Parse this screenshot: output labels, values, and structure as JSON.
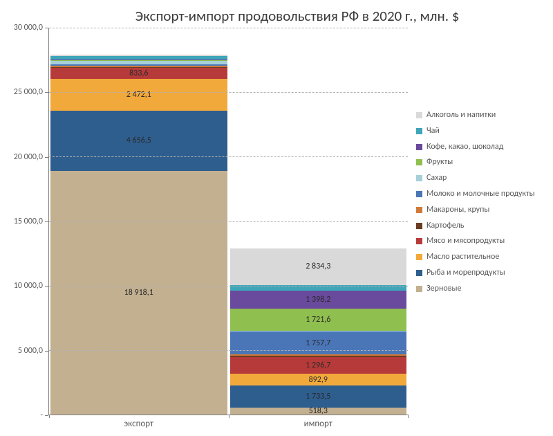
{
  "chart": {
    "type": "stacked-bar",
    "title": "Экспорт-импорт продовольствия РФ в 2020 г., млн. $",
    "title_fontsize": 21,
    "title_color": "#3a3a3a",
    "background_color": "#ffffff",
    "grid_color": "#b0b0b0",
    "axis_color": "#808080",
    "label_color": "#595959",
    "label_fontsize": 12,
    "ylim": [
      0,
      30000
    ],
    "ytick_step": 5000,
    "yticks": [
      {
        "v": 0,
        "label": "-"
      },
      {
        "v": 5000,
        "label": "5 000,0"
      },
      {
        "v": 10000,
        "label": "10 000,0"
      },
      {
        "v": 15000,
        "label": "15 000,0"
      },
      {
        "v": 20000,
        "label": "20 000,0"
      },
      {
        "v": 25000,
        "label": "25 000,0"
      },
      {
        "v": 30000,
        "label": "30 000,0"
      }
    ],
    "categories": [
      "экспорт",
      "импорт"
    ],
    "series": [
      {
        "key": "grain",
        "name": "Зерновые",
        "color": "#c3b091"
      },
      {
        "key": "fish",
        "name": "Рыба и морепродукты",
        "color": "#2e5e8e"
      },
      {
        "key": "oil",
        "name": "Масло растительное",
        "color": "#f2a93b"
      },
      {
        "key": "meat",
        "name": "Мясо и мясопродукты",
        "color": "#b73a3a"
      },
      {
        "key": "potato",
        "name": "Картофель",
        "color": "#6b3c24"
      },
      {
        "key": "pasta",
        "name": "Макароны, крупы",
        "color": "#d07a3a"
      },
      {
        "key": "milk",
        "name": "Молоко и молочные продукты",
        "color": "#4a76b8"
      },
      {
        "key": "sugar",
        "name": "Сахар",
        "color": "#a6cfd8"
      },
      {
        "key": "fruit",
        "name": "Фрукты",
        "color": "#8fbf4f"
      },
      {
        "key": "coffee",
        "name": "Кофе, какао, шоколад",
        "color": "#6a4a9c"
      },
      {
        "key": "tea",
        "name": "Чай",
        "color": "#3ea6b8"
      },
      {
        "key": "alcohol",
        "name": "Алкоголь и напитки",
        "color": "#d9d9d9"
      }
    ],
    "legend_order": [
      "alcohol",
      "tea",
      "coffee",
      "fruit",
      "sugar",
      "milk",
      "pasta",
      "potato",
      "meat",
      "oil",
      "fish",
      "grain"
    ],
    "data": {
      "экспорт": {
        "grain": {
          "value": 18918.1,
          "label": "18 918,1",
          "show": true
        },
        "fish": {
          "value": 4656.5,
          "label": "4 656,5",
          "show": true
        },
        "oil": {
          "value": 2472.1,
          "label": "2 472,1",
          "show": true
        },
        "meat": {
          "value": 833.6,
          "label": "833,6",
          "show": true
        },
        "potato": {
          "value": 80,
          "label": "",
          "show": false
        },
        "pasta": {
          "value": 100,
          "label": "",
          "show": false
        },
        "milk": {
          "value": 120,
          "label": "",
          "show": false
        },
        "sugar": {
          "value": 240,
          "label": "",
          "show": false
        },
        "fruit": {
          "value": 70,
          "label": "",
          "show": false
        },
        "coffee": {
          "value": 60,
          "label": "",
          "show": false
        },
        "tea": {
          "value": 240,
          "label": "",
          "show": false
        },
        "alcohol": {
          "value": 120,
          "label": "",
          "show": false
        }
      },
      "импорт": {
        "grain": {
          "value": 518.3,
          "label": "518,3",
          "show": true
        },
        "fish": {
          "value": 1733.5,
          "label": "1 733,5",
          "show": true
        },
        "oil": {
          "value": 892.9,
          "label": "892,9",
          "show": true
        },
        "meat": {
          "value": 1296.7,
          "label": "1 296,7",
          "show": true
        },
        "potato": {
          "value": 120,
          "label": "",
          "show": false
        },
        "pasta": {
          "value": 110,
          "label": "",
          "show": false
        },
        "milk": {
          "value": 1757.7,
          "label": "1 757,7",
          "show": true
        },
        "sugar": {
          "value": 80,
          "label": "",
          "show": false
        },
        "fruit": {
          "value": 1721.6,
          "label": "1 721,6",
          "show": true
        },
        "coffee": {
          "value": 1398.2,
          "label": "1 398,2",
          "show": true
        },
        "tea": {
          "value": 420,
          "label": "",
          "show": false
        },
        "alcohol": {
          "value": 2834.3,
          "label": "2 834,3",
          "show": true
        }
      }
    }
  }
}
